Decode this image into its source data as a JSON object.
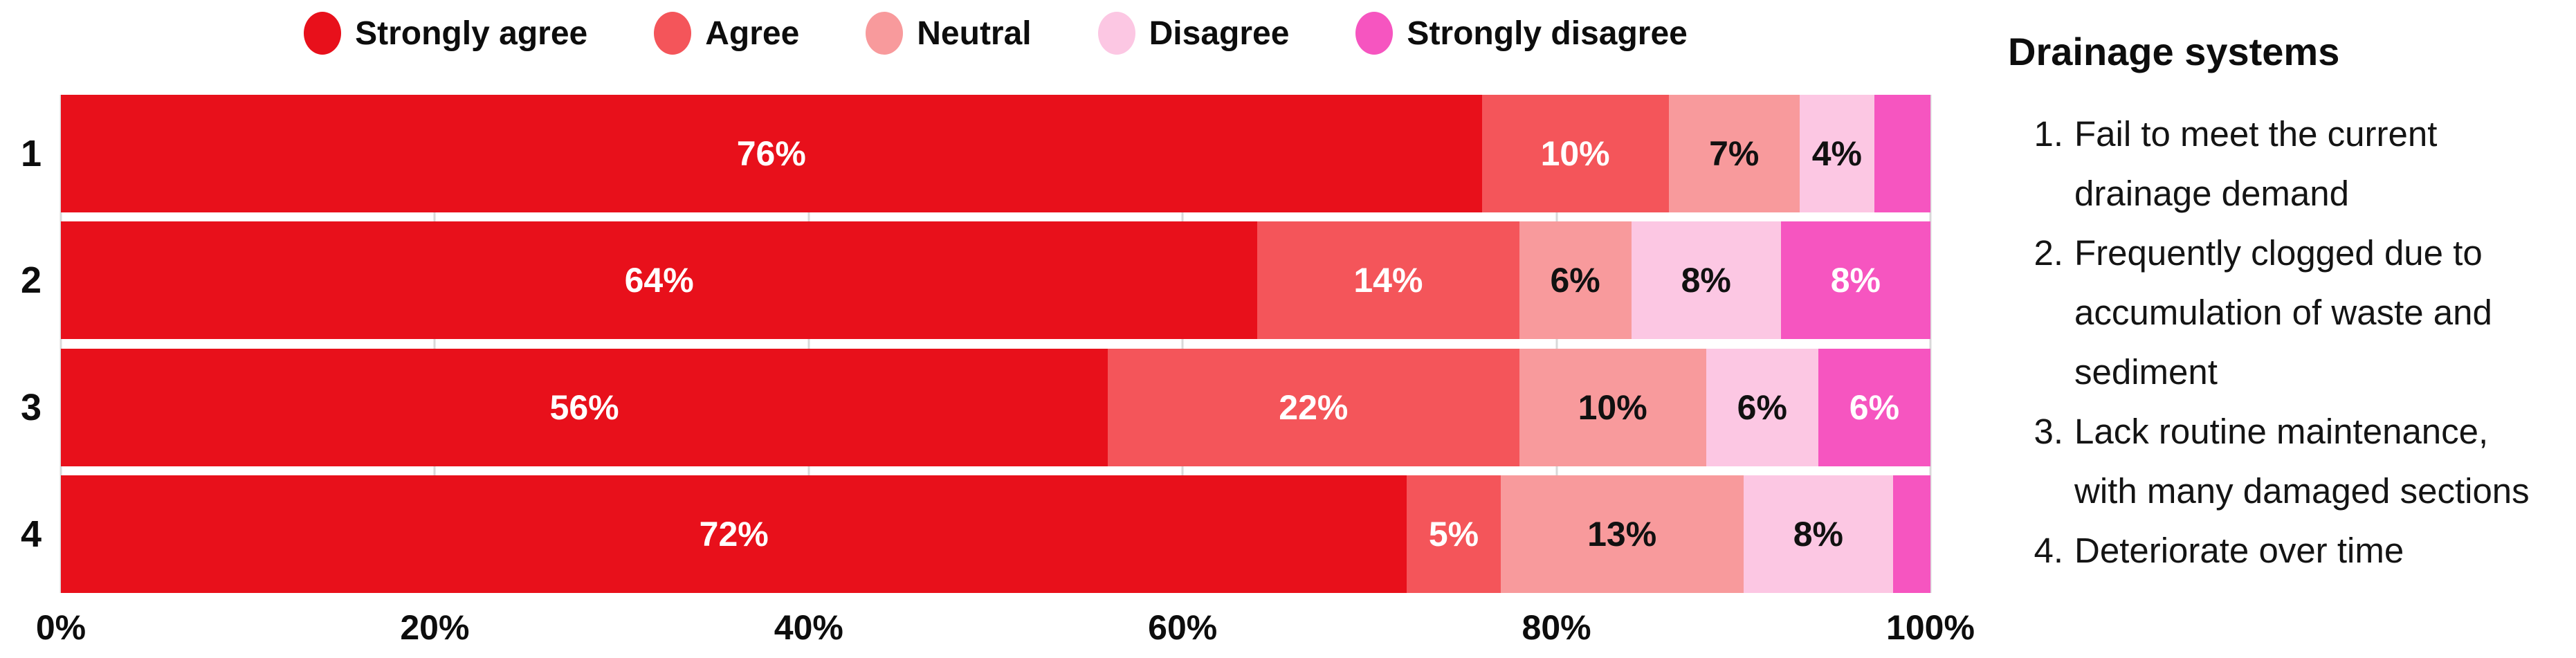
{
  "notes": {
    "title": "Drainage systems",
    "items": [
      {
        "number": "1.",
        "lines": [
          "Fail to meet the current",
          "drainage demand"
        ]
      },
      {
        "number": "2.",
        "lines": [
          "Frequently clogged due to",
          "accumulation of waste and",
          "sediment"
        ]
      },
      {
        "number": "3.",
        "lines": [
          "Lack routine maintenance,",
          "with many damaged sections"
        ]
      },
      {
        "number": "4.",
        "lines": [
          "Deteriorate over time"
        ]
      }
    ]
  },
  "chart_data": {
    "type": "bar",
    "orientation": "horizontal",
    "stacked": true,
    "title": "",
    "categories": [
      "1",
      "2",
      "3",
      "4"
    ],
    "series": [
      {
        "name": "Strongly agree",
        "color": "#e8101b",
        "label_color": "#ffffff",
        "values": [
          76,
          64,
          56,
          72
        ]
      },
      {
        "name": "Agree",
        "color": "#f4555a",
        "label_color": "#ffffff",
        "values": [
          10,
          14,
          22,
          5
        ]
      },
      {
        "name": "Neutral",
        "color": "#f89a9c",
        "label_color": "#111111",
        "values": [
          7,
          6,
          10,
          13
        ]
      },
      {
        "name": "Disagree",
        "color": "#fcc7e3",
        "label_color": "#111111",
        "values": [
          4,
          8,
          6,
          8
        ]
      },
      {
        "name": "Strongly disagree",
        "color": "#f655c0",
        "label_color": "#ffffff",
        "values": [
          3,
          8,
          6,
          2
        ]
      }
    ],
    "x_axis": {
      "ticks": [
        "0%",
        "20%",
        "40%",
        "60%",
        "80%",
        "100%"
      ],
      "tick_values": [
        0,
        20,
        40,
        60,
        80,
        100
      ],
      "range": [
        0,
        100
      ]
    },
    "value_suffix": "%",
    "label_min_value": 4,
    "grid": "vertical",
    "gridline_color": "#d9d9d9",
    "legend_position": "top"
  }
}
